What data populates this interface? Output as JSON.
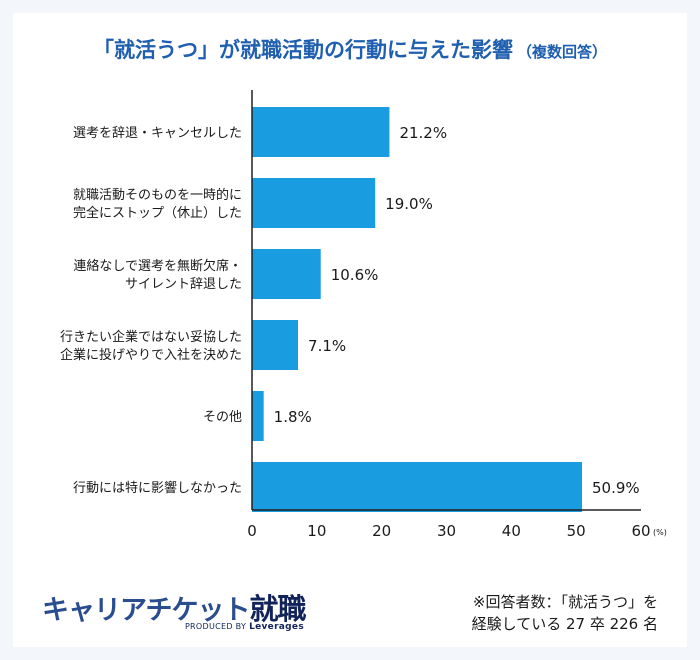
{
  "title": {
    "main": "「就活うつ」が就職活動の行動に与えた影響",
    "sub": "（複数回答）"
  },
  "chart_data": {
    "type": "bar",
    "orientation": "horizontal",
    "categories": [
      [
        "選考を辞退・キャンセルした"
      ],
      [
        "就職活動そのものを一時的に",
        "完全にストップ（休止）した"
      ],
      [
        "連絡なしで選考を無断欠席・",
        "サイレント辞退した"
      ],
      [
        "行きたい企業ではない妥協した",
        "企業に投げやりで入社を決めた"
      ],
      [
        "その他"
      ],
      [
        "行動には特に影響しなかった"
      ]
    ],
    "values": [
      21.2,
      19.0,
      10.6,
      7.1,
      1.8,
      50.9
    ],
    "value_labels": [
      "21.2%",
      "19.0%",
      "10.6%",
      "7.1%",
      "1.8%",
      "50.9%"
    ],
    "xlim": [
      0,
      60
    ],
    "xticks": [
      "0",
      "10",
      "20",
      "30",
      "40",
      "50",
      "60"
    ],
    "x_unit": "(%)",
    "bar_color": "#1a9ce0",
    "grid": false
  },
  "footnote": {
    "line1": "※回答者数：「就活うつ」を",
    "line2": "経験している 27 卒 226 名"
  },
  "brand": {
    "name_kana": "キャリアチケット",
    "name_kanji": "就職",
    "tag_prefix": "PRODUCED BY",
    "tag_company": "Leverages"
  }
}
